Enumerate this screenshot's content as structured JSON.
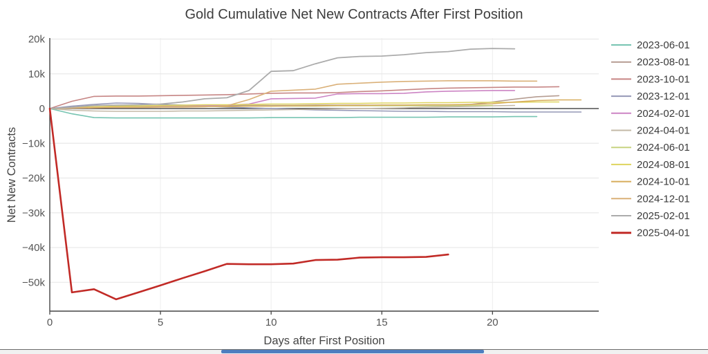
{
  "page": {
    "background": "#ffffff"
  },
  "chart_data": {
    "type": "line",
    "title": "Gold Cumulative Net New Contracts After First Position",
    "xlabel": "Days after First Position",
    "ylabel": "Net New Contracts",
    "y_units": "thousands of contracts",
    "x_units": "days (series x = 0,1,2,... implicit)",
    "xlim": [
      0,
      24.8
    ],
    "ylim": [
      -58.3,
      20.3
    ],
    "grid": true,
    "legend_position": "right",
    "grid_color": "#e9e9e9",
    "zeroline_color": "#2a2a2a",
    "axis_color": "#444444",
    "xticks": [
      {
        "v": 0,
        "label": "0"
      },
      {
        "v": 5,
        "label": "5"
      },
      {
        "v": 10,
        "label": "10"
      },
      {
        "v": 15,
        "label": "15"
      },
      {
        "v": 20,
        "label": "20"
      }
    ],
    "yticks": [
      {
        "v": 20,
        "label": "20k"
      },
      {
        "v": 10,
        "label": "10k"
      },
      {
        "v": 0,
        "label": "0"
      },
      {
        "v": -10,
        "label": "−10k"
      },
      {
        "v": -20,
        "label": "−20k"
      },
      {
        "v": -30,
        "label": "−30k"
      },
      {
        "v": -40,
        "label": "−40k"
      },
      {
        "v": -50,
        "label": "−50k"
      }
    ],
    "series": [
      {
        "name": "2023-06-01",
        "color": "#76c4b1",
        "width": 1.6,
        "values": [
          0,
          -1.5,
          -2.6,
          -2.7,
          -2.7,
          -2.7,
          -2.7,
          -2.7,
          -2.7,
          -2.7,
          -2.6,
          -2.6,
          -2.6,
          -2.6,
          -2.5,
          -2.5,
          -2.5,
          -2.5,
          -2.4,
          -2.4,
          -2.4,
          -2.3,
          -2.3
        ]
      },
      {
        "name": "2023-08-01",
        "color": "#b59c91",
        "width": 1.6,
        "values": [
          0,
          0.3,
          0.5,
          0.6,
          0.7,
          0.7,
          0.8,
          0.8,
          0.8,
          0.9,
          0.9,
          0.9,
          1.0,
          1.0,
          1.0,
          1.0,
          1.0,
          1.0,
          1.0,
          1.2,
          1.9,
          2.7,
          3.4,
          3.7
        ]
      },
      {
        "name": "2023-10-01",
        "color": "#c68584",
        "width": 1.6,
        "values": [
          0,
          2.1,
          3.5,
          3.6,
          3.6,
          3.7,
          3.8,
          3.9,
          4.0,
          4.2,
          4.4,
          4.5,
          4.5,
          4.6,
          4.9,
          5.1,
          5.4,
          5.7,
          5.9,
          6.0,
          6.1,
          6.2,
          6.2,
          6.3
        ]
      },
      {
        "name": "2023-12-01",
        "color": "#9497b6",
        "width": 1.6,
        "values": [
          0,
          0.7,
          1.2,
          1.6,
          1.5,
          1.2,
          1.0,
          0.7,
          0.4,
          0.2,
          0.0,
          -0.2,
          -0.4,
          -0.5,
          -0.6,
          -0.7,
          -0.8,
          -0.8,
          -0.9,
          -0.9,
          -0.9,
          -1.0,
          -1.0,
          -1.0,
          -1.0
        ]
      },
      {
        "name": "2024-02-01",
        "color": "#cc84c4",
        "width": 1.6,
        "values": [
          0,
          0.2,
          0.3,
          0.4,
          0.5,
          0.6,
          0.7,
          0.8,
          1.0,
          1.3,
          2.8,
          2.9,
          3.0,
          4.2,
          4.3,
          4.3,
          4.4,
          4.8,
          5.0,
          5.1,
          5.2,
          5.2
        ]
      },
      {
        "name": "2024-04-01",
        "color": "#c3b8a6",
        "width": 1.6,
        "values": [
          0,
          -0.5,
          -0.7,
          -0.8,
          -0.8,
          -0.8,
          -0.7,
          -0.7,
          -0.6,
          -0.5,
          -0.4,
          -0.3,
          -0.2,
          -0.1,
          0.0,
          0.1,
          0.2,
          0.4,
          0.5,
          0.6,
          0.8,
          0.9
        ]
      },
      {
        "name": "2024-06-01",
        "color": "#c7d380",
        "width": 1.6,
        "values": [
          0,
          0.2,
          0.3,
          0.4,
          0.5,
          0.5,
          0.6,
          0.6,
          0.6,
          0.7,
          0.7,
          0.7,
          0.7,
          0.8,
          0.8,
          0.8,
          0.8,
          0.8,
          0.8,
          0.9,
          0.9
        ]
      },
      {
        "name": "2024-08-01",
        "color": "#ded45e",
        "width": 1.6,
        "values": [
          0,
          0.3,
          0.5,
          0.7,
          0.8,
          0.9,
          1.0,
          1.1,
          1.1,
          1.2,
          1.3,
          1.3,
          1.4,
          1.5,
          1.5,
          1.6,
          1.6,
          1.7,
          1.7,
          1.8,
          1.8,
          1.8,
          1.9,
          1.9
        ]
      },
      {
        "name": "2024-10-01",
        "color": "#d7ac5b",
        "width": 1.6,
        "values": [
          0,
          0.2,
          0.3,
          0.4,
          0.4,
          0.5,
          0.5,
          0.6,
          0.6,
          0.7,
          0.7,
          0.8,
          0.8,
          0.9,
          0.9,
          1.0,
          1.0,
          1.1,
          1.1,
          1.2,
          1.4,
          1.9,
          2.3,
          2.5,
          2.5
        ]
      },
      {
        "name": "2024-12-01",
        "color": "#dab078",
        "width": 1.6,
        "values": [
          0,
          0.1,
          0.2,
          0.3,
          0.3,
          0.4,
          0.4,
          0.5,
          0.8,
          2.6,
          5.0,
          5.3,
          5.6,
          7.0,
          7.3,
          7.6,
          7.8,
          7.9,
          8.0,
          8.0,
          8.0,
          7.9,
          7.9
        ]
      },
      {
        "name": "2025-02-01",
        "color": "#ababab",
        "width": 1.8,
        "values": [
          0,
          0.4,
          0.9,
          1.0,
          1.1,
          1.3,
          1.9,
          2.8,
          3.1,
          5.2,
          10.7,
          10.9,
          12.9,
          14.6,
          15.0,
          15.1,
          15.5,
          16.1,
          16.4,
          17.1,
          17.3,
          17.2
        ]
      },
      {
        "name": "2025-04-01",
        "color": "#c12a26",
        "width": 2.6,
        "values": [
          0,
          -52.9,
          -52.0,
          -54.9,
          -52.9,
          -50.9,
          -48.8,
          -46.8,
          -44.7,
          -44.8,
          -44.8,
          -44.6,
          -43.6,
          -43.5,
          -42.9,
          -42.8,
          -42.8,
          -42.7,
          -42.0
        ]
      }
    ]
  },
  "footer": {
    "bar_color": "#4d7ec0",
    "track_color": "#f1f1f1",
    "border_color": "#6b6b6b"
  }
}
